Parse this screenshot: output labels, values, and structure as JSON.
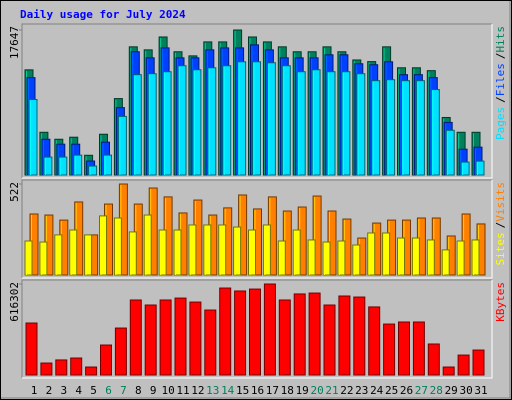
{
  "chart_data": [
    {
      "type": "bar",
      "title": "Daily usage for July 2024",
      "legend_separator": "/",
      "ylim": [
        0,
        17647
      ],
      "yticks": [
        17647
      ],
      "series": [
        {
          "name": "Pages",
          "color": "#00e0ff",
          "values": [
            9190,
            2180,
            2180,
            2420,
            1090,
            2420,
            7130,
            12210,
            12330,
            12570,
            13300,
            12810,
            13050,
            13300,
            13780,
            13780,
            13660,
            13300,
            12570,
            12810,
            12570,
            12570,
            12330,
            11480,
            11600,
            11480,
            11480,
            10400,
            5440,
            1570,
            1690
          ]
        },
        {
          "name": "Files",
          "color": "#0040ff",
          "values": [
            11850,
            4350,
            3750,
            3750,
            1700,
            4000,
            8200,
            15000,
            14260,
            15470,
            14260,
            14260,
            15230,
            15470,
            15470,
            15840,
            15230,
            14260,
            14260,
            14260,
            14630,
            14630,
            13540,
            13420,
            13780,
            12210,
            12210,
            11850,
            6400,
            3140,
            3390
          ]
        },
        {
          "name": "Hits",
          "color": "#00805c",
          "values": [
            12800,
            5200,
            4350,
            4600,
            2400,
            4960,
            9300,
            15600,
            15230,
            16800,
            15000,
            14500,
            16200,
            16200,
            17647,
            16800,
            16200,
            15600,
            15000,
            15000,
            15600,
            15000,
            14000,
            13800,
            15600,
            13050,
            13050,
            12700,
            7000,
            5200,
            5200
          ]
        }
      ]
    },
    {
      "type": "bar",
      "legend_separator": "/",
      "ylim": [
        0,
        522
      ],
      "yticks": [
        522
      ],
      "series": [
        {
          "name": "Sites",
          "color": "#ffff00",
          "values": [
            195,
            189,
            230,
            258,
            230,
            339,
            327,
            247,
            344,
            258,
            258,
            287,
            287,
            287,
            275,
            258,
            287,
            195,
            258,
            201,
            189,
            195,
            172,
            241,
            241,
            212,
            212,
            201,
            144,
            195,
            201
          ]
        },
        {
          "name": "Visits",
          "color": "#ff8000",
          "values": [
            350,
            344,
            315,
            419,
            230,
            407,
            522,
            407,
            499,
            448,
            356,
            430,
            344,
            385,
            459,
            379,
            448,
            367,
            390,
            453,
            367,
            321,
            212,
            298,
            315,
            315,
            327,
            327,
            224,
            350,
            293
          ]
        }
      ]
    },
    {
      "type": "bar",
      "ylim": [
        0,
        616302
      ],
      "yticks": [
        616302
      ],
      "categories": [
        "1",
        "2",
        "3",
        "4",
        "5",
        "6",
        "7",
        "8",
        "9",
        "10",
        "11",
        "12",
        "13",
        "14",
        "15",
        "16",
        "17",
        "18",
        "19",
        "20",
        "21",
        "22",
        "23",
        "24",
        "25",
        "26",
        "27",
        "28",
        "29",
        "30",
        "31"
      ],
      "category_colors": [
        "#000000",
        "#000000",
        "#000000",
        "#000000",
        "#000000",
        "#00805c",
        "#00805c",
        "#000000",
        "#000000",
        "#000000",
        "#000000",
        "#000000",
        "#00805c",
        "#00805c",
        "#000000",
        "#000000",
        "#000000",
        "#000000",
        "#000000",
        "#00805c",
        "#00805c",
        "#000000",
        "#000000",
        "#000000",
        "#000000",
        "#000000",
        "#00805c",
        "#00805c",
        "#000000",
        "#000000",
        "#000000"
      ],
      "series": [
        {
          "name": "KBytes",
          "color": "#ff0000",
          "values": [
            352000,
            81000,
            102000,
            115000,
            54000,
            203000,
            318000,
            508000,
            474000,
            508000,
            521000,
            494000,
            440000,
            589000,
            569000,
            582000,
            616302,
            508000,
            549000,
            555000,
            474000,
            535000,
            528000,
            461000,
            345000,
            359000,
            359000,
            210000,
            54000,
            135000,
            169000
          ]
        }
      ]
    }
  ]
}
